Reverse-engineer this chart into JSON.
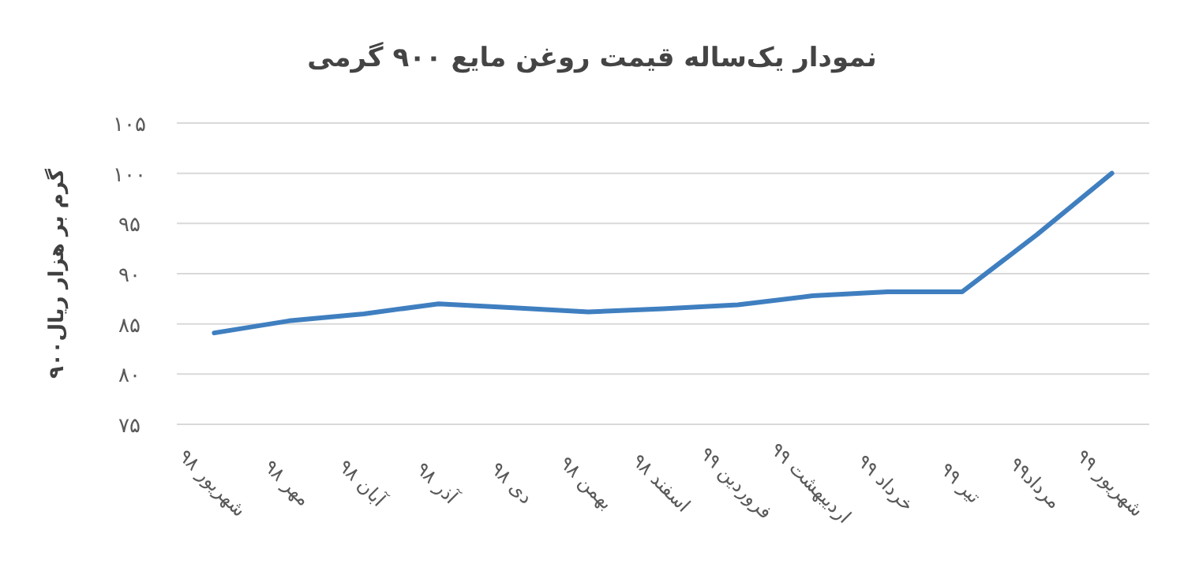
{
  "chart_data": {
    "type": "line",
    "title": "نمودار یک‌ساله قیمت روغن مایع ۹۰۰ گرمی",
    "ylabel": "۹۰۰گرم بر هزار ریال",
    "categories": [
      "شهریور ۹۸",
      "مهر ۹۸",
      "آبان ۹۸",
      "آذر ۹۸",
      "دی ۹۸",
      "بهمن ۹۸",
      "اسفند ۹۸",
      "فروردین ۹۹",
      "اردیبهشت ۹۹",
      "خرداد ۹۹",
      "تیر ۹۹",
      "مرداد۹۹",
      "شهریور ۹۹"
    ],
    "series": [
      {
        "color": "#3f7fc0",
        "values": [
          84.1,
          85.3,
          86.0,
          87.0,
          86.6,
          86.2,
          86.5,
          86.9,
          87.8,
          88.2,
          88.2,
          93.9,
          100
        ]
      }
    ],
    "ylim": [
      75,
      105
    ],
    "yticks": [
      {
        "value": 75,
        "label": "۷۵"
      },
      {
        "value": 80,
        "label": "۸۰"
      },
      {
        "value": 85,
        "label": "۸۵"
      },
      {
        "value": 90,
        "label": "۹۰"
      },
      {
        "value": 95,
        "label": "۹۵"
      },
      {
        "value": 100,
        "label": "۱۰۰"
      },
      {
        "value": 105,
        "label": "۱۰۵"
      }
    ],
    "grid": "y",
    "marker": "none",
    "line_style": "solid"
  }
}
